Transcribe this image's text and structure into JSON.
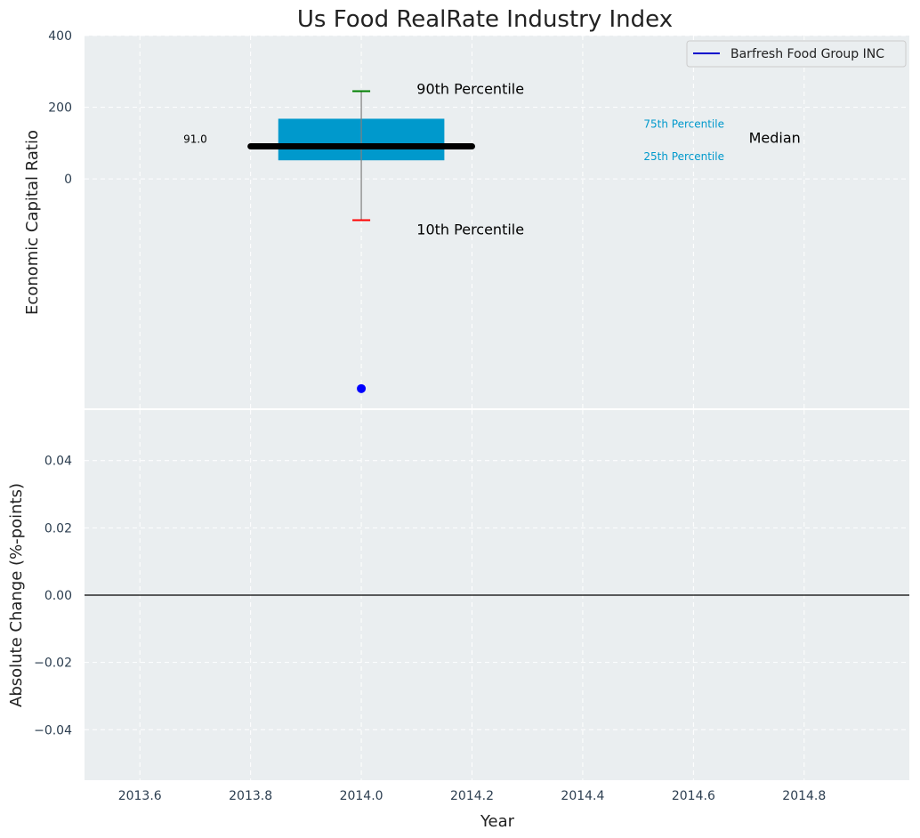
{
  "chart_data": [
    {
      "type": "box",
      "title": "Us Food RealRate Industry Index",
      "xlabel": "",
      "ylabel": "Economic Capital Ratio",
      "xlim": [
        2013.5,
        2014.99
      ],
      "ylim": [
        -640,
        400
      ],
      "yticks": [
        0,
        200,
        400
      ],
      "grid": true,
      "legend": {
        "position": "top-right",
        "entries": [
          "Barfresh Food Group INC"
        ]
      },
      "box": {
        "x": 2014.0,
        "p10": -115,
        "p25": 52,
        "median": 91,
        "p75": 168,
        "p90": 245,
        "median_label": "91.0"
      },
      "series": [
        {
          "name": "Barfresh Food Group INC",
          "x": [
            2014.0
          ],
          "y": [
            -585
          ]
        }
      ],
      "annotations": {
        "p90": "90th Percentile",
        "p10": "10th Percentile",
        "p75": "75th Percentile",
        "p25": "25th Percentile",
        "median": "Median"
      },
      "colors": {
        "box": "#0099cc",
        "median": "#000000",
        "p90_cap": "#008000",
        "p10_cap": "#ff0000",
        "point": "#0000ff",
        "whisker": "#808080",
        "legend_line": "#0000cc",
        "panel": "#eaeef0"
      }
    },
    {
      "type": "line",
      "title": "",
      "xlabel": "Year",
      "ylabel": "Absolute Change (%-points)",
      "xlim": [
        2013.5,
        2014.99
      ],
      "ylim": [
        -0.055,
        0.055
      ],
      "yticks": [
        -0.04,
        -0.02,
        0.0,
        0.02,
        0.04
      ],
      "ytick_labels": [
        "−0.04",
        "−0.02",
        "0.00",
        "0.02",
        "0.04"
      ],
      "xticks": [
        2013.6,
        2013.8,
        2014.0,
        2014.2,
        2014.4,
        2014.6,
        2014.8
      ],
      "xtick_labels": [
        "2013.6",
        "2013.8",
        "2014.0",
        "2014.2",
        "2014.4",
        "2014.6",
        "2014.8"
      ],
      "grid": true,
      "reference_line": 0.0
    }
  ]
}
